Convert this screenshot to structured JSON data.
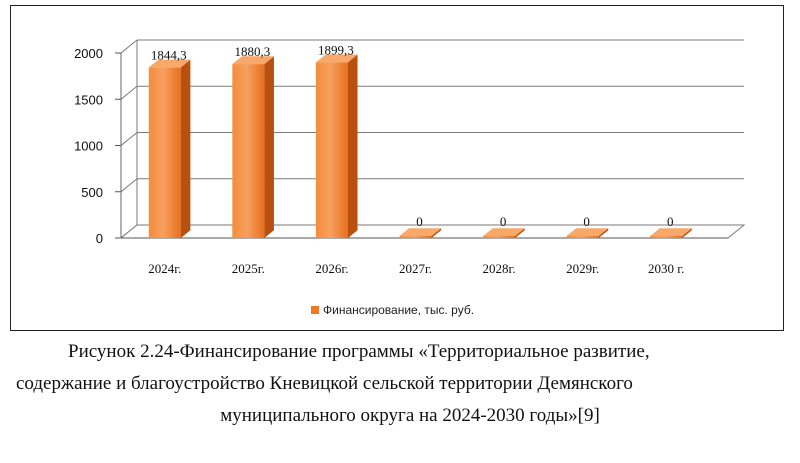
{
  "chart_data": {
    "type": "bar",
    "style": "3d",
    "categories": [
      "2024г.",
      "2025г.",
      "2026г.",
      "2027г.",
      "2028г.",
      "2029г.",
      "2030 г."
    ],
    "series": [
      {
        "name": "Финансирование, тыс. руб.",
        "values": [
          1844.3,
          1880.3,
          1899.3,
          0,
          0,
          0,
          0
        ],
        "labels": [
          "1844,3",
          "1880,3",
          "1899,3",
          "0",
          "0",
          "0",
          "0"
        ]
      }
    ],
    "ylim": [
      0,
      2000
    ],
    "yticks": [
      0,
      500,
      1000,
      1500,
      2000
    ],
    "grid": true,
    "legend": "bottom",
    "colors": {
      "bar_front": "#F07A22",
      "bar_front_light": "#F59A55",
      "bar_side": "#B8500F",
      "bar_top": "#F8A868",
      "grid": "#7a7a7a"
    }
  },
  "caption": {
    "line1": "Рисунок 2.24-Финансирование программы «Территориальное развитие,",
    "line2": "содержание и благоустройство Кневицкой сельской территории Демянского",
    "line3": "муниципального округа на 2024-2030 годы»[9]"
  }
}
